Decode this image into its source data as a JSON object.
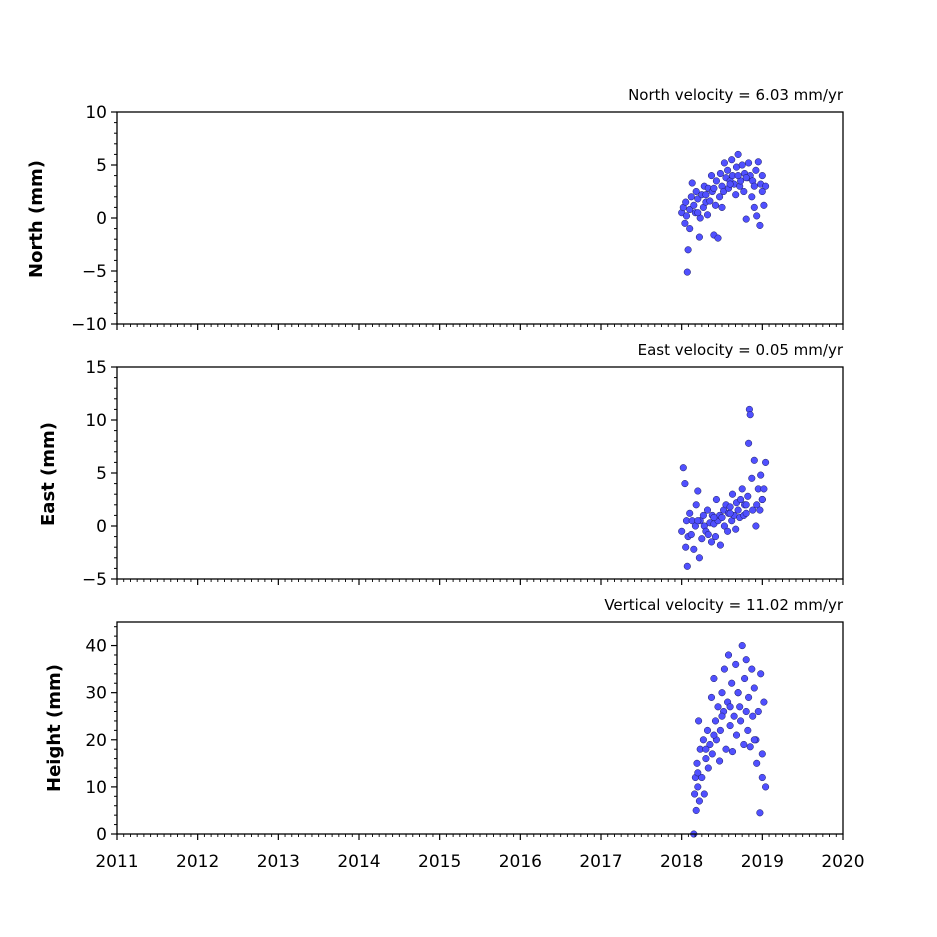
{
  "chart_data": [
    {
      "type": "scatter",
      "title": "North velocity = 6.03 mm/yr",
      "ylabel": "North (mm)",
      "xlim": [
        2011,
        2020
      ],
      "ylim": [
        -10,
        10
      ],
      "yticks": [
        "10",
        "5",
        "0",
        "−5",
        "−10"
      ],
      "yticks_values": [
        10,
        5,
        0,
        -5,
        -10
      ],
      "x_ticks_shown": false,
      "marker_color": "#5050ff",
      "grid": false,
      "series": [
        {
          "x": [
            2018.0,
            2018.02,
            2018.04,
            2018.05,
            2018.06,
            2018.07,
            2018.08,
            2018.1,
            2018.12,
            2018.13,
            2018.15,
            2018.17,
            2018.18,
            2018.2,
            2018.22,
            2018.23,
            2018.25,
            2018.27,
            2018.28,
            2018.3,
            2018.32,
            2018.33,
            2018.35,
            2018.37,
            2018.38,
            2018.4,
            2018.42,
            2018.43,
            2018.45,
            2018.47,
            2018.48,
            2018.5,
            2018.52,
            2018.53,
            2018.55,
            2018.57,
            2018.58,
            2018.6,
            2018.62,
            2018.63,
            2018.65,
            2018.67,
            2018.68,
            2018.7,
            2018.72,
            2018.73,
            2018.75,
            2018.77,
            2018.78,
            2018.8,
            2018.82,
            2018.83,
            2018.85,
            2018.87,
            2018.88,
            2018.9,
            2018.92,
            2018.93,
            2018.95,
            2018.97,
            2018.98,
            2019.0,
            2019.02,
            2019.04,
            2018.1,
            2018.3,
            2018.5,
            2018.7,
            2018.9,
            2018.2,
            2018.4,
            2018.6,
            2018.8,
            2019.0
          ],
          "y": [
            0.5,
            1.0,
            -0.5,
            1.5,
            0.2,
            -5.1,
            -3.0,
            0.8,
            2.0,
            3.3,
            1.2,
            0.5,
            2.5,
            1.8,
            -1.8,
            0.0,
            2.2,
            1.0,
            3.0,
            1.5,
            0.3,
            2.8,
            1.6,
            4.0,
            2.5,
            -1.6,
            1.2,
            3.5,
            -1.9,
            2.0,
            4.2,
            3.0,
            2.5,
            5.2,
            3.8,
            4.5,
            2.8,
            3.5,
            5.5,
            4.0,
            3.2,
            2.2,
            4.8,
            6.0,
            3.0,
            3.5,
            5.0,
            2.5,
            4.2,
            -0.1,
            3.8,
            5.2,
            4.0,
            2.0,
            3.5,
            1.0,
            4.5,
            0.2,
            5.3,
            -0.7,
            3.2,
            4.0,
            1.2,
            3.0,
            -1.0,
            2.2,
            1.0,
            4.0,
            3.0,
            0.5,
            2.8,
            3.2,
            3.8,
            2.5
          ]
        }
      ]
    },
    {
      "type": "scatter",
      "title": "East velocity = 0.05 mm/yr",
      "ylabel": "East (mm)",
      "xlim": [
        2011,
        2020
      ],
      "ylim": [
        -5,
        15
      ],
      "yticks": [
        "15",
        "10",
        "5",
        "0",
        "−5"
      ],
      "yticks_values": [
        15,
        10,
        5,
        0,
        -5
      ],
      "x_ticks_shown": false,
      "marker_color": "#5050ff",
      "grid": false,
      "series": [
        {
          "x": [
            2018.0,
            2018.02,
            2018.04,
            2018.05,
            2018.06,
            2018.07,
            2018.08,
            2018.1,
            2018.12,
            2018.13,
            2018.15,
            2018.17,
            2018.18,
            2018.2,
            2018.22,
            2018.23,
            2018.25,
            2018.27,
            2018.28,
            2018.3,
            2018.32,
            2018.33,
            2018.35,
            2018.37,
            2018.38,
            2018.4,
            2018.42,
            2018.43,
            2018.45,
            2018.47,
            2018.48,
            2018.5,
            2018.52,
            2018.53,
            2018.55,
            2018.57,
            2018.58,
            2018.6,
            2018.62,
            2018.63,
            2018.65,
            2018.67,
            2018.68,
            2018.7,
            2018.72,
            2018.73,
            2018.75,
            2018.77,
            2018.78,
            2018.8,
            2018.82,
            2018.83,
            2018.84,
            2018.85,
            2018.87,
            2018.88,
            2018.9,
            2018.92,
            2018.93,
            2018.95,
            2018.97,
            2018.98,
            2019.0,
            2019.02,
            2019.04,
            2018.2,
            2018.4,
            2018.6,
            2018.8,
            2019.0
          ],
          "y": [
            -0.5,
            5.5,
            4.0,
            -2.0,
            0.5,
            -3.8,
            -1.0,
            1.2,
            -0.8,
            0.5,
            -2.2,
            0.0,
            2.0,
            3.3,
            -3.0,
            0.5,
            -1.2,
            1.0,
            0.0,
            -0.5,
            1.5,
            -0.8,
            0.3,
            -1.5,
            1.0,
            0.2,
            -1.0,
            2.5,
            0.5,
            1.0,
            -1.8,
            0.8,
            1.5,
            0.0,
            2.0,
            -0.5,
            1.2,
            1.8,
            0.5,
            3.0,
            1.0,
            -0.3,
            2.2,
            1.5,
            0.8,
            2.5,
            3.5,
            1.0,
            2.0,
            1.2,
            2.8,
            7.8,
            11.0,
            10.5,
            4.5,
            1.5,
            6.2,
            0.0,
            2.0,
            3.5,
            1.5,
            4.8,
            2.5,
            3.5,
            6.0,
            0.5,
            0.8,
            1.2,
            2.0,
            2.5
          ]
        }
      ]
    },
    {
      "type": "scatter",
      "title": "Vertical velocity = 11.02 mm/yr",
      "ylabel": "Height (mm)",
      "xlim": [
        2011,
        2020
      ],
      "ylim": [
        0,
        45
      ],
      "yticks": [
        "40",
        "30",
        "20",
        "10",
        "0"
      ],
      "yticks_values": [
        40,
        30,
        20,
        10,
        0
      ],
      "xticks": [
        "2011",
        "2012",
        "2013",
        "2014",
        "2015",
        "2016",
        "2017",
        "2018",
        "2019",
        "2020"
      ],
      "xticks_values": [
        2011,
        2012,
        2013,
        2014,
        2015,
        2016,
        2017,
        2018,
        2019,
        2020
      ],
      "marker_color": "#5050ff",
      "grid": false,
      "series": [
        {
          "x": [
            2018.15,
            2018.16,
            2018.17,
            2018.18,
            2018.19,
            2018.2,
            2018.21,
            2018.22,
            2018.23,
            2018.25,
            2018.27,
            2018.28,
            2018.3,
            2018.32,
            2018.33,
            2018.35,
            2018.37,
            2018.38,
            2018.4,
            2018.42,
            2018.43,
            2018.45,
            2018.47,
            2018.48,
            2018.5,
            2018.52,
            2018.53,
            2018.55,
            2018.57,
            2018.58,
            2018.6,
            2018.62,
            2018.63,
            2018.65,
            2018.67,
            2018.68,
            2018.7,
            2018.72,
            2018.73,
            2018.75,
            2018.77,
            2018.78,
            2018.8,
            2018.82,
            2018.83,
            2018.85,
            2018.87,
            2018.88,
            2018.9,
            2018.92,
            2018.93,
            2018.95,
            2018.97,
            2018.98,
            2019.0,
            2019.02,
            2019.04,
            2018.2,
            2018.3,
            2018.4,
            2018.5,
            2018.6,
            2018.7,
            2018.8,
            2018.9,
            2019.0
          ],
          "y": [
            0.0,
            8.5,
            12.0,
            5.0,
            15.0,
            10.0,
            24.0,
            7.0,
            18.0,
            12.0,
            20.0,
            8.5,
            16.0,
            22.0,
            14.0,
            19.0,
            29.0,
            17.0,
            33.0,
            24.0,
            20.0,
            27.0,
            15.5,
            22.0,
            30.0,
            26.0,
            35.0,
            18.0,
            28.0,
            38.0,
            23.0,
            32.0,
            17.5,
            25.0,
            36.0,
            21.0,
            30.0,
            27.0,
            24.0,
            40.0,
            19.0,
            33.0,
            37.0,
            22.0,
            29.0,
            18.5,
            35.0,
            25.0,
            31.0,
            20.0,
            15.0,
            26.0,
            4.5,
            34.0,
            12.0,
            28.0,
            10.0,
            13.0,
            18.0,
            21.0,
            25.0,
            27.0,
            30.0,
            26.0,
            20.0,
            17.0
          ]
        }
      ]
    }
  ]
}
